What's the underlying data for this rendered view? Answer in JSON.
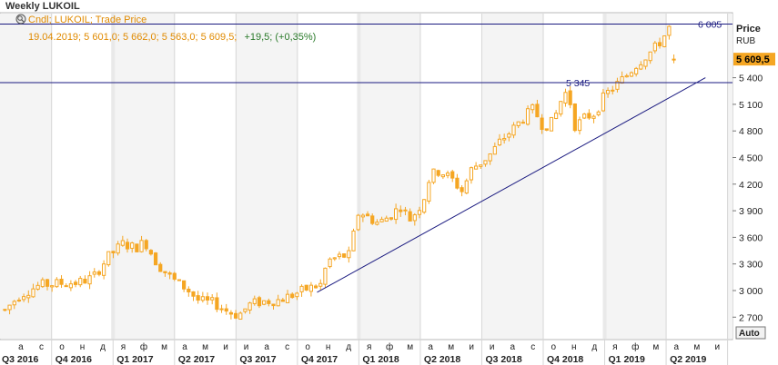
{
  "window": {
    "title": "Weekly LUKOIL"
  },
  "info": {
    "legend": "Cndl; LUKOIL; Trade Price",
    "line_prefix": "19.04.2019; 5 601,0; 5 662,0; 5 563,0; 5 609,5;",
    "change": "+19,5; (+0,35%)"
  },
  "axis": {
    "title": "Price",
    "unit": "RUB",
    "auto_label": "Auto"
  },
  "last_price_label": "5 609,5",
  "hline_labels": {
    "upper": "6 005",
    "lower": "5 345"
  },
  "colors": {
    "candle": "#f5a623",
    "line": "#1a1a80",
    "last_price_bg": "#f5a623",
    "change_text": "#2a7a2a",
    "info_text": "#e08a00"
  },
  "chart_data": {
    "type": "candlestick",
    "title": "Weekly LUKOIL",
    "ylabel": "Price",
    "yunit": "RUB",
    "ylim": [
      2550,
      6200
    ],
    "yticks": [
      2700,
      3000,
      3300,
      3600,
      3900,
      4200,
      4500,
      4800,
      5100,
      5400
    ],
    "ytick_labels": [
      "2 700",
      "3 000",
      "3 300",
      "3 600",
      "3 900",
      "4 200",
      "4 500",
      "4 800",
      "5 100",
      "5 400"
    ],
    "x_month_labels": [
      "а",
      "с",
      "о",
      "н",
      "д",
      "я",
      "ф",
      "м",
      "а",
      "м",
      "и",
      "и",
      "а",
      "с",
      "о",
      "н",
      "д",
      "я",
      "ф",
      "м",
      "а",
      "м",
      "и",
      "и",
      "а",
      "с",
      "о",
      "н",
      "д",
      "я",
      "ф",
      "м",
      "а",
      "м",
      "и"
    ],
    "x_quarter_labels": [
      "Q3 2016",
      "Q4 2016",
      "Q1 2017",
      "Q2 2017",
      "Q3 2017",
      "Q4 2017",
      "Q1 2018",
      "Q2 2018",
      "Q3 2018",
      "Q4 2018",
      "Q1 2019",
      "Q2 2019"
    ],
    "last_candle": {
      "date": "19.04.2019",
      "open": 5601.0,
      "high": 5662.0,
      "low": 5563.0,
      "close": 5609.5
    },
    "close_path": [
      [
        2016.56,
        2780
      ],
      [
        2016.62,
        2950
      ],
      [
        2016.7,
        3060
      ],
      [
        2016.78,
        3080
      ],
      [
        2016.86,
        3090
      ],
      [
        2016.92,
        3150
      ],
      [
        2016.98,
        3380
      ],
      [
        2017.04,
        3530
      ],
      [
        2017.09,
        3480
      ],
      [
        2017.13,
        3550
      ],
      [
        2017.18,
        3300
      ],
      [
        2017.24,
        3130
      ],
      [
        2017.3,
        3020
      ],
      [
        2017.35,
        2880
      ],
      [
        2017.41,
        2860
      ],
      [
        2017.47,
        2760
      ],
      [
        2017.51,
        2720
      ],
      [
        2017.56,
        2850
      ],
      [
        2017.62,
        2880
      ],
      [
        2017.67,
        2890
      ],
      [
        2017.73,
        2950
      ],
      [
        2017.79,
        3020
      ],
      [
        2017.85,
        3070
      ],
      [
        2017.87,
        3330
      ],
      [
        2017.92,
        3380
      ],
      [
        2017.96,
        3400
      ],
      [
        2018.0,
        3900
      ],
      [
        2018.04,
        3820
      ],
      [
        2018.08,
        3760
      ],
      [
        2018.13,
        3850
      ],
      [
        2018.17,
        3950
      ],
      [
        2018.21,
        3800
      ],
      [
        2018.26,
        4000
      ],
      [
        2018.29,
        4300
      ],
      [
        2018.33,
        4350
      ],
      [
        2018.38,
        4250
      ],
      [
        2018.42,
        4120
      ],
      [
        2018.46,
        4380
      ],
      [
        2018.5,
        4450
      ],
      [
        2018.54,
        4550
      ],
      [
        2018.58,
        4700
      ],
      [
        2018.62,
        4800
      ],
      [
        2018.67,
        4950
      ],
      [
        2018.71,
        5050
      ],
      [
        2018.75,
        4850
      ],
      [
        2018.79,
        4900
      ],
      [
        2018.83,
        5200
      ],
      [
        2018.85,
        5250
      ],
      [
        2018.88,
        4850
      ],
      [
        2018.92,
        4950
      ],
      [
        2018.96,
        5000
      ],
      [
        2019.0,
        5200
      ],
      [
        2019.04,
        5300
      ],
      [
        2019.08,
        5400
      ],
      [
        2019.13,
        5550
      ],
      [
        2019.17,
        5650
      ],
      [
        2019.21,
        5750
      ],
      [
        2019.25,
        5900
      ],
      [
        2019.27,
        6000
      ],
      [
        2019.29,
        5760
      ],
      [
        2019.3,
        5609.5
      ]
    ],
    "horizontal_lines": [
      {
        "label": "6 005",
        "value": 6005
      },
      {
        "label": "5 345",
        "value": 5345
      }
    ],
    "trendline": {
      "start": [
        2017.83,
        2980
      ],
      "end": [
        2019.41,
        5400
      ]
    },
    "grid": false
  }
}
